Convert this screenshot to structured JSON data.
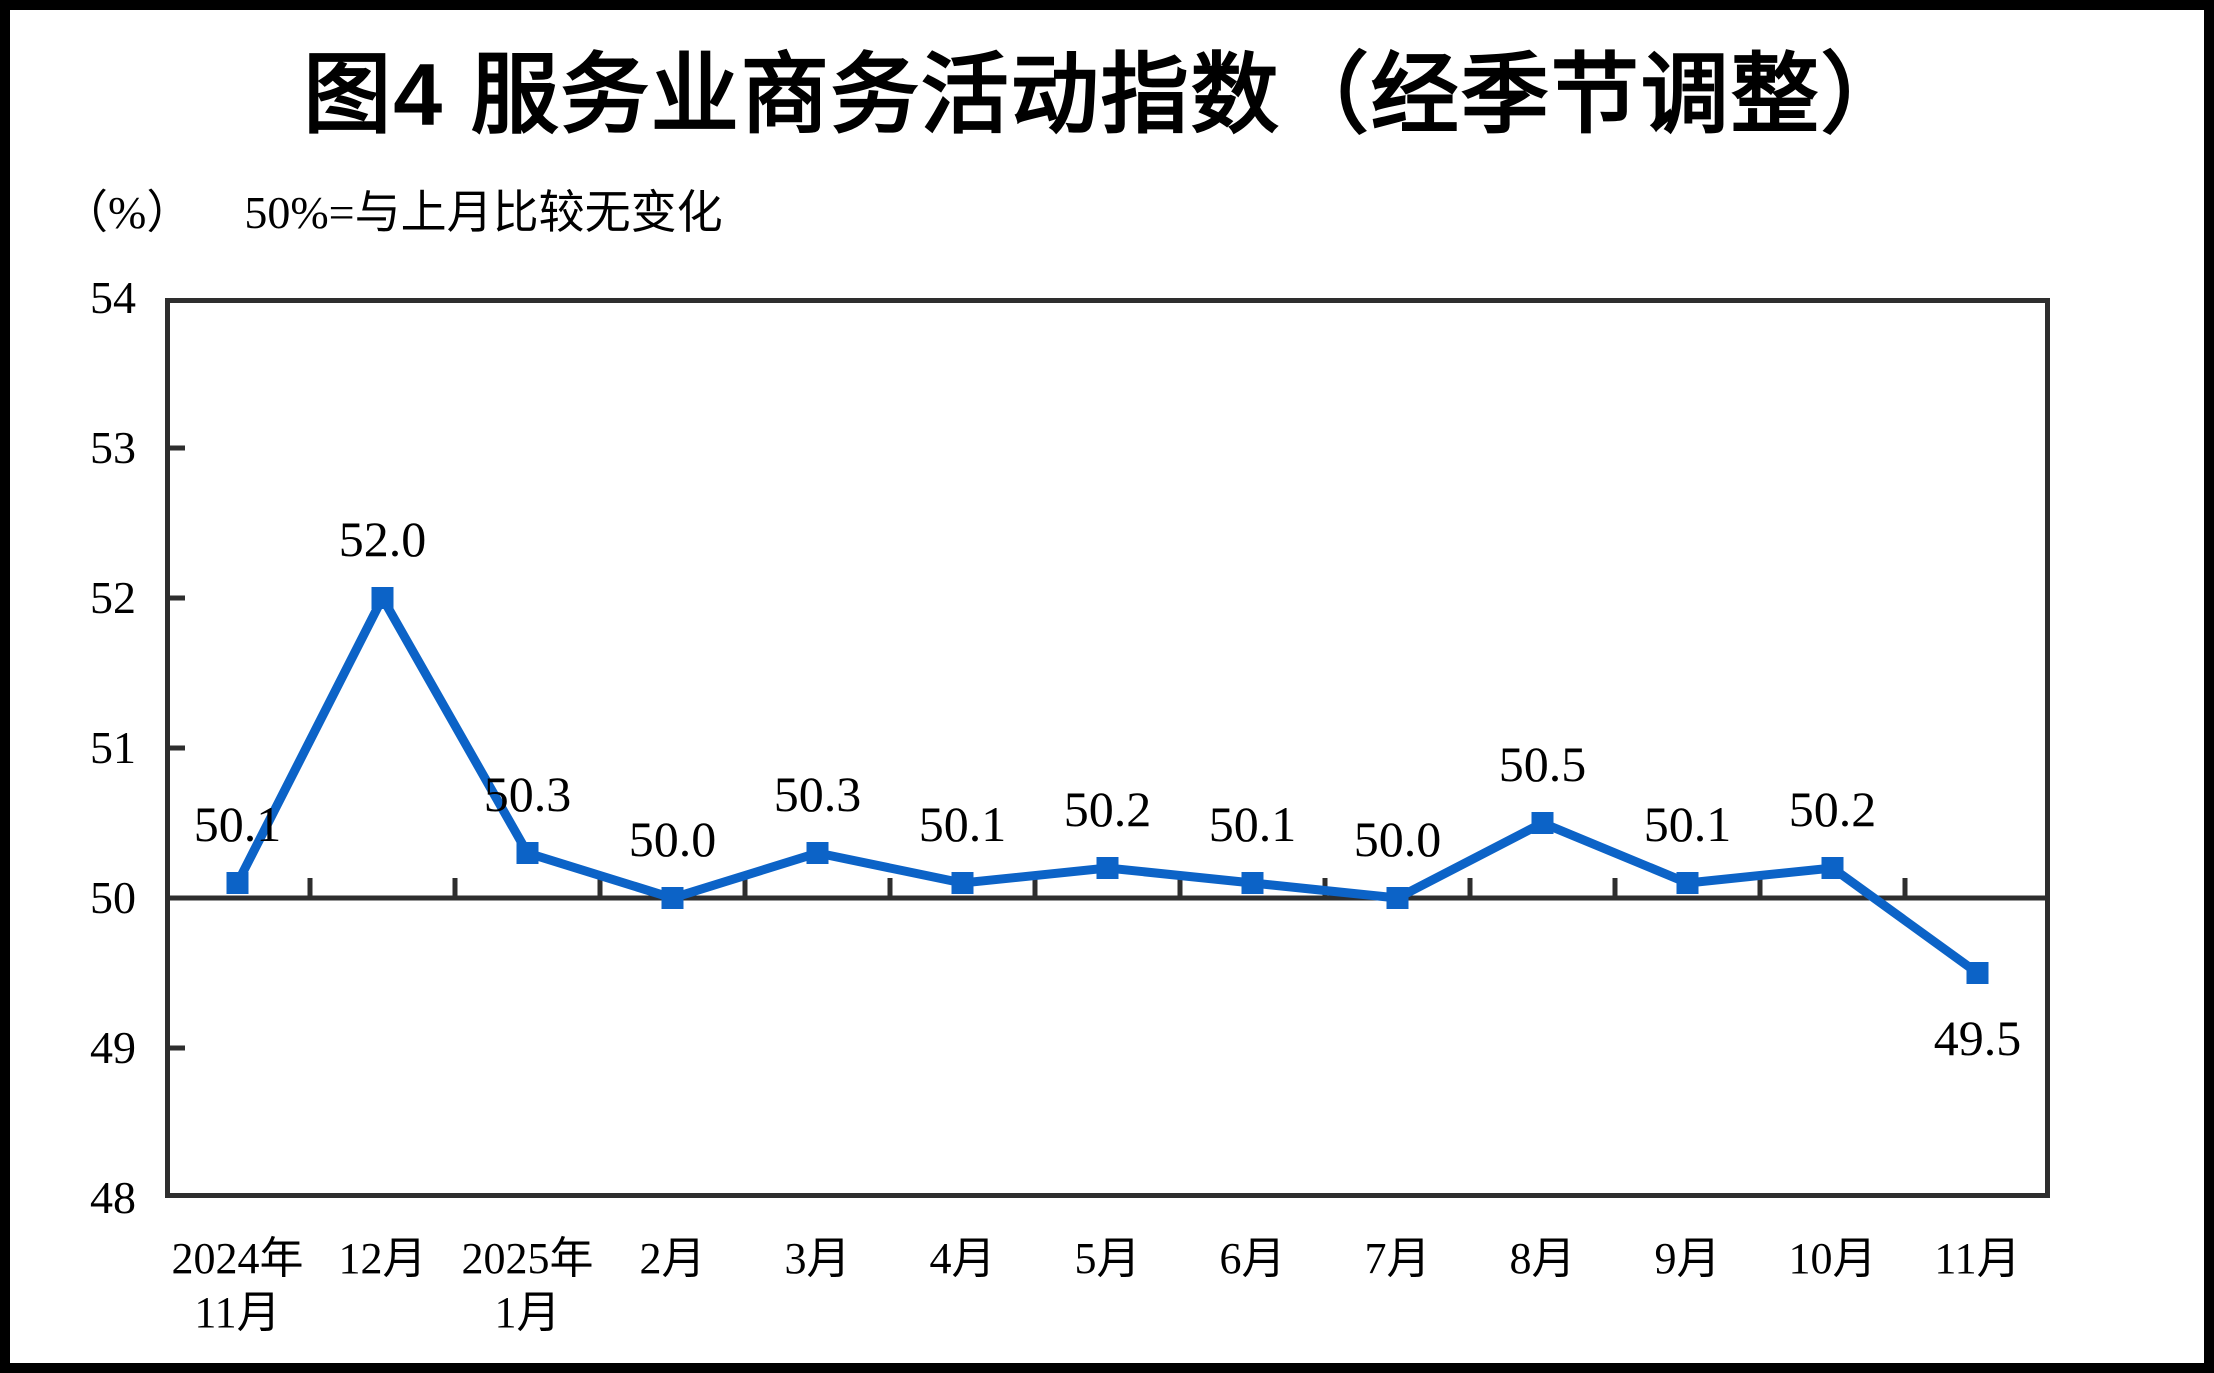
{
  "figure": {
    "title": "图4  服务业商务活动指数（经季节调整）",
    "unit_label": "（%）",
    "note": "50%=与上月比较无变化"
  },
  "chart_data": {
    "type": "line",
    "title": "图4 服务业商务活动指数（经季节调整）",
    "subtitle": "50%=与上月比较无变化",
    "unit": "%",
    "categories": [
      [
        "2024年",
        "11月"
      ],
      [
        "12月"
      ],
      [
        "2025年",
        "1月"
      ],
      [
        "2月"
      ],
      [
        "3月"
      ],
      [
        "4月"
      ],
      [
        "5月"
      ],
      [
        "6月"
      ],
      [
        "7月"
      ],
      [
        "8月"
      ],
      [
        "9月"
      ],
      [
        "10月"
      ],
      [
        "11月"
      ]
    ],
    "values": [
      50.1,
      52.0,
      50.3,
      50.0,
      50.3,
      50.1,
      50.2,
      50.1,
      50.0,
      50.5,
      50.1,
      50.2,
      49.5
    ],
    "data_labels": [
      "50.1",
      "52.0",
      "50.3",
      "50.0",
      "50.3",
      "50.1",
      "50.2",
      "50.1",
      "50.0",
      "50.5",
      "50.1",
      "50.2",
      "49.5"
    ],
    "ylim": [
      48,
      54
    ],
    "yticks": [
      54,
      53,
      52,
      51,
      50,
      49,
      48
    ],
    "reference_value": 50,
    "grid": false,
    "legend": false,
    "marker": "square",
    "label_below_indices": [
      12
    ],
    "colors": {
      "line": "#0c63c7",
      "axis": "#2e2e2e",
      "text": "#000000",
      "background": "#ffffff",
      "frame": "#000000"
    }
  }
}
